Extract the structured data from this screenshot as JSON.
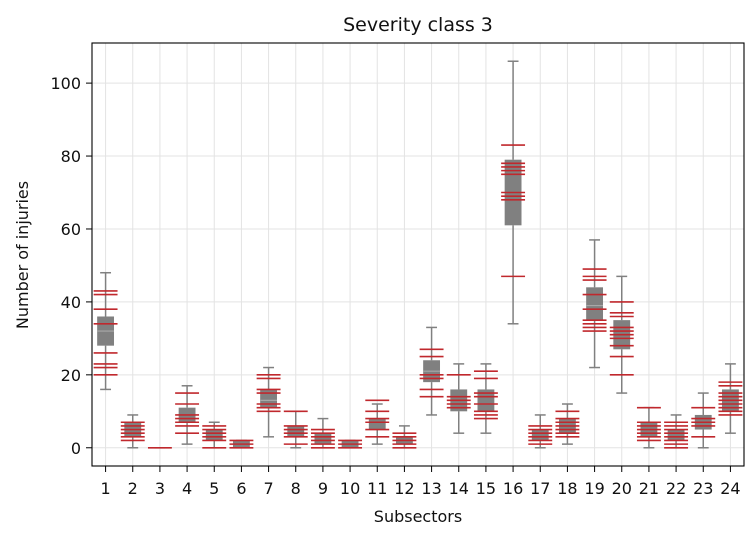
{
  "chart_data": {
    "type": "boxplot",
    "title": "Severity class 3",
    "xlabel": "Subsectors",
    "ylabel": "Number of injuries",
    "ylim": [
      -5,
      111
    ],
    "yticks": [
      0,
      20,
      40,
      60,
      80,
      100
    ],
    "grid": true,
    "categories": [
      "1",
      "2",
      "3",
      "4",
      "5",
      "6",
      "7",
      "8",
      "9",
      "10",
      "11",
      "12",
      "13",
      "14",
      "15",
      "16",
      "17",
      "18",
      "19",
      "20",
      "21",
      "22",
      "23",
      "24"
    ],
    "box_color": "#808080",
    "observation_color": "#c0282d",
    "boxes": [
      {
        "whislo": 16,
        "q1": 28,
        "med": 32,
        "q3": 36,
        "whishi": 48
      },
      {
        "whislo": 0,
        "q1": 3,
        "med": 5,
        "q3": 7,
        "whishi": 9
      },
      {
        "whislo": 0,
        "q1": 0,
        "med": 0,
        "q3": 0,
        "whishi": 0
      },
      {
        "whislo": 1,
        "q1": 7,
        "med": 9,
        "q3": 11,
        "whishi": 17
      },
      {
        "whislo": 0,
        "q1": 2,
        "med": 3,
        "q3": 5,
        "whishi": 7
      },
      {
        "whislo": 0,
        "q1": 0,
        "med": 1,
        "q3": 2,
        "whishi": 2
      },
      {
        "whislo": 3,
        "q1": 11,
        "med": 13,
        "q3": 16,
        "whishi": 22
      },
      {
        "whislo": 0,
        "q1": 3,
        "med": 4,
        "q3": 6,
        "whishi": 10
      },
      {
        "whislo": 0,
        "q1": 1,
        "med": 3,
        "q3": 4,
        "whishi": 8
      },
      {
        "whislo": 0,
        "q1": 0,
        "med": 1,
        "q3": 2,
        "whishi": 2
      },
      {
        "whislo": 1,
        "q1": 5,
        "med": 7,
        "q3": 8,
        "whishi": 12
      },
      {
        "whislo": 0,
        "q1": 1,
        "med": 2,
        "q3": 3,
        "whishi": 6
      },
      {
        "whislo": 9,
        "q1": 18,
        "med": 21,
        "q3": 24,
        "whishi": 33
      },
      {
        "whislo": 4,
        "q1": 10,
        "med": 13,
        "q3": 16,
        "whishi": 23
      },
      {
        "whislo": 4,
        "q1": 10,
        "med": 12,
        "q3": 16,
        "whishi": 23
      },
      {
        "whislo": 34,
        "q1": 61,
        "med": 69,
        "q3": 79,
        "whishi": 106
      },
      {
        "whislo": 0,
        "q1": 2,
        "med": 3,
        "q3": 5,
        "whishi": 9
      },
      {
        "whislo": 1,
        "q1": 4,
        "med": 6,
        "q3": 8,
        "whishi": 12
      },
      {
        "whislo": 22,
        "q1": 35,
        "med": 39,
        "q3": 44,
        "whishi": 57
      },
      {
        "whislo": 15,
        "q1": 27,
        "med": 31,
        "q3": 35,
        "whishi": 47
      },
      {
        "whislo": 0,
        "q1": 3,
        "med": 5,
        "q3": 7,
        "whishi": 11
      },
      {
        "whislo": 0,
        "q1": 2,
        "med": 3,
        "q3": 5,
        "whishi": 9
      },
      {
        "whislo": 0,
        "q1": 5,
        "med": 7,
        "q3": 9,
        "whishi": 15
      },
      {
        "whislo": 4,
        "q1": 10,
        "med": 13,
        "q3": 16,
        "whishi": 23
      }
    ],
    "observations": [
      [
        20,
        22,
        23,
        26,
        34,
        38,
        42,
        43
      ],
      [
        2,
        3,
        4,
        5,
        6,
        7
      ],
      [
        0
      ],
      [
        4,
        6,
        7,
        8,
        9,
        12,
        15
      ],
      [
        0,
        2,
        3,
        4,
        5,
        6
      ],
      [
        0,
        1,
        2
      ],
      [
        10,
        11,
        12,
        15,
        16,
        19,
        20
      ],
      [
        1,
        3,
        4,
        5,
        6,
        10
      ],
      [
        0,
        1,
        2,
        3,
        4,
        5
      ],
      [
        0,
        1,
        2
      ],
      [
        3,
        5,
        7,
        8,
        10,
        13
      ],
      [
        0,
        1,
        2,
        3,
        4
      ],
      [
        14,
        16,
        19,
        20,
        25,
        27
      ],
      [
        11,
        12,
        13,
        14,
        20
      ],
      [
        8,
        9,
        10,
        12,
        14,
        15,
        19,
        21
      ],
      [
        47,
        68,
        69,
        70,
        75,
        76,
        77,
        78,
        83
      ],
      [
        1,
        2,
        3,
        4,
        5,
        6
      ],
      [
        3,
        4,
        5,
        6,
        7,
        8,
        10
      ],
      [
        32,
        33,
        34,
        35,
        38,
        42,
        46,
        47,
        49
      ],
      [
        20,
        25,
        28,
        30,
        31,
        32,
        33,
        36,
        37,
        40
      ],
      [
        2,
        3,
        4,
        5,
        6,
        7,
        11
      ],
      [
        0,
        1,
        2,
        3,
        4,
        5,
        6,
        7
      ],
      [
        3,
        6,
        7,
        8,
        11
      ],
      [
        9,
        10,
        11,
        12,
        13,
        14,
        15,
        17,
        18
      ]
    ]
  }
}
